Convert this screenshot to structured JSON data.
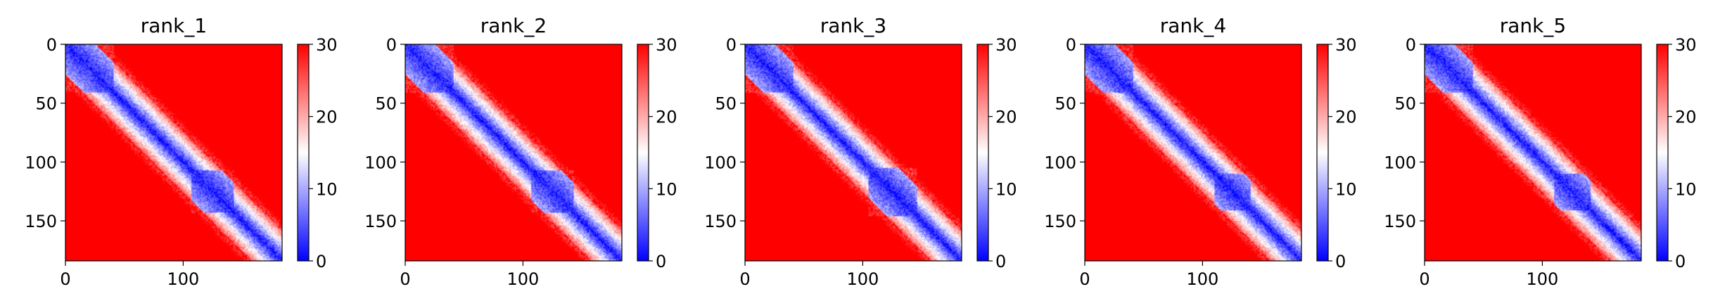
{
  "chart_data": [
    {
      "type": "heatmap",
      "title": "rank_1",
      "x_range": [
        0,
        184
      ],
      "y_range": [
        0,
        184
      ],
      "y_inverted": true,
      "x_ticks": [
        0,
        100
      ],
      "y_ticks": [
        0,
        50,
        100,
        150
      ],
      "colorbar": {
        "min": 0,
        "max": 30,
        "ticks": [
          0,
          10,
          20,
          30
        ],
        "colors": [
          "#0000ff",
          "#ffffff",
          "#ff0000"
        ]
      },
      "domains": [
        [
          0,
          40
        ],
        [
          107,
          142
        ]
      ]
    },
    {
      "type": "heatmap",
      "title": "rank_2",
      "x_range": [
        0,
        184
      ],
      "y_range": [
        0,
        184
      ],
      "y_inverted": true,
      "x_ticks": [
        0,
        100
      ],
      "y_ticks": [
        0,
        50,
        100,
        150
      ],
      "colorbar": {
        "min": 0,
        "max": 30,
        "ticks": [
          0,
          10,
          20,
          30
        ],
        "colors": [
          "#0000ff",
          "#ffffff",
          "#ff0000"
        ]
      },
      "domains": [
        [
          0,
          40
        ],
        [
          107,
          142
        ]
      ]
    },
    {
      "type": "heatmap",
      "title": "rank_3",
      "x_range": [
        0,
        184
      ],
      "y_range": [
        0,
        184
      ],
      "y_inverted": true,
      "x_ticks": [
        0,
        100
      ],
      "y_ticks": [
        0,
        50,
        100,
        150
      ],
      "colorbar": {
        "min": 0,
        "max": 30,
        "ticks": [
          0,
          10,
          20,
          30
        ],
        "colors": [
          "#0000ff",
          "#ffffff",
          "#ff0000"
        ]
      },
      "domains": [
        [
          0,
          40
        ],
        [
          105,
          145
        ]
      ]
    },
    {
      "type": "heatmap",
      "title": "rank_4",
      "x_range": [
        0,
        184
      ],
      "y_range": [
        0,
        184
      ],
      "y_inverted": true,
      "x_ticks": [
        0,
        100
      ],
      "y_ticks": [
        0,
        50,
        100,
        150
      ],
      "colorbar": {
        "min": 0,
        "max": 30,
        "ticks": [
          0,
          10,
          20,
          30
        ],
        "colors": [
          "#0000ff",
          "#ffffff",
          "#ff0000"
        ]
      },
      "domains": [
        [
          0,
          40
        ],
        [
          110,
          140
        ]
      ]
    },
    {
      "type": "heatmap",
      "title": "rank_5",
      "x_range": [
        0,
        184
      ],
      "y_range": [
        0,
        184
      ],
      "y_inverted": true,
      "x_ticks": [
        0,
        100
      ],
      "y_ticks": [
        0,
        50,
        100,
        150
      ],
      "colorbar": {
        "min": 0,
        "max": 30,
        "ticks": [
          0,
          10,
          20,
          30
        ],
        "colors": [
          "#0000ff",
          "#ffffff",
          "#ff0000"
        ]
      },
      "domains": [
        [
          0,
          40
        ],
        [
          110,
          140
        ]
      ]
    }
  ]
}
